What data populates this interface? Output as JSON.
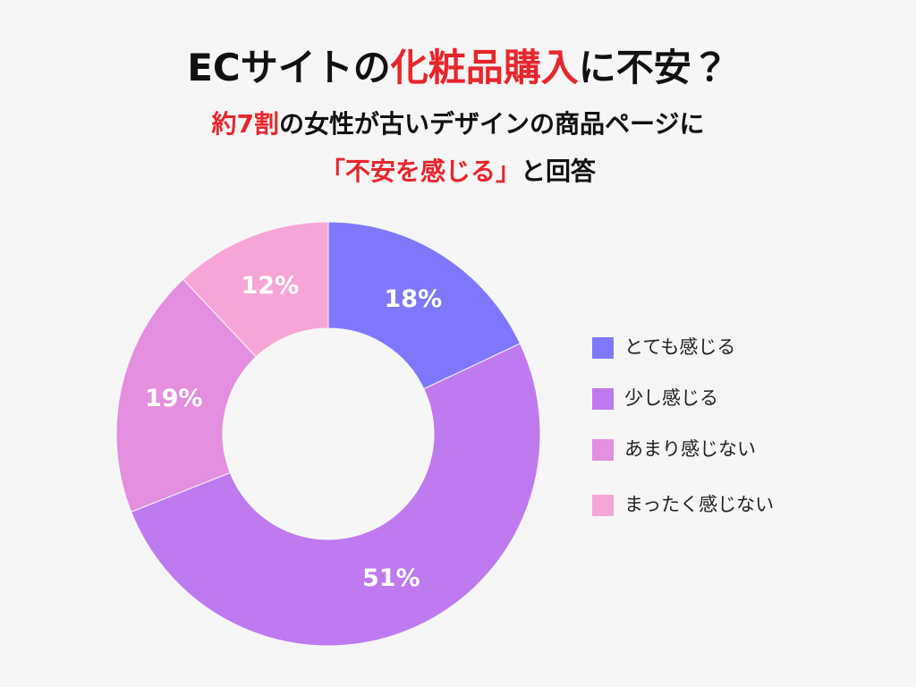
{
  "chart_data": {
    "type": "donut",
    "title": [
      {
        "text": "ECサイトの"
      },
      {
        "text": "化粧品購入",
        "color": "#e8262c"
      },
      {
        "text": "に不安？"
      }
    ],
    "subtitle": [
      [
        {
          "text": "約7割",
          "color": "#e8262c"
        },
        {
          "text": "の女性が古いデザインの商品ページに"
        }
      ],
      [
        {
          "text": "「不安を感じる」",
          "color": "#e8262c"
        },
        {
          "text": "と回答"
        }
      ]
    ],
    "categories": [
      "とても感じる",
      "少し感じる",
      "あまり感じない",
      "まったく感じない"
    ],
    "values": [
      18,
      51,
      19,
      12
    ],
    "value_labels": [
      "18%",
      "51%",
      "19%",
      "12%"
    ],
    "colors": [
      "#7f78fd",
      "#bf7aef",
      "#e48ee0",
      "#f5a6d6"
    ],
    "legend": "right"
  }
}
